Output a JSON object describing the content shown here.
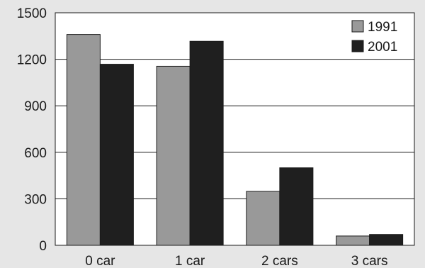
{
  "chart_data": {
    "type": "bar",
    "categories": [
      "0 car",
      "1 car",
      "2 cars",
      "3 cars"
    ],
    "series": [
      {
        "name": "1991",
        "values": [
          1360,
          1155,
          348,
          60
        ],
        "color": "#999999"
      },
      {
        "name": "2001",
        "values": [
          1168,
          1316,
          500,
          70
        ],
        "color": "#1f1f1f"
      }
    ],
    "ylim": [
      0,
      1500
    ],
    "yticks": [
      0,
      300,
      600,
      900,
      1200,
      1500
    ],
    "grid": true,
    "legend_position": "top-right",
    "plot_background": "#ffffff",
    "page_background": "#e6e6e6"
  }
}
